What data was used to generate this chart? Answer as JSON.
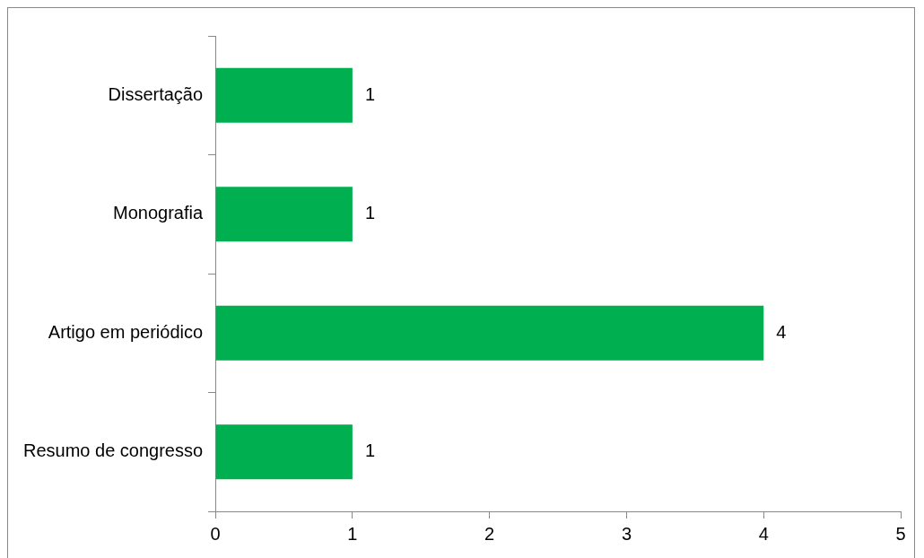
{
  "chart_data": {
    "type": "bar",
    "orientation": "horizontal",
    "categories": [
      "Dissertação",
      "Monografia",
      "Artigo em periódico",
      "Resumo de congresso"
    ],
    "values": [
      1,
      1,
      4,
      1
    ],
    "color": "#00b050",
    "xlim": [
      0,
      5
    ],
    "xticks": [
      0,
      1,
      2,
      3,
      4,
      5
    ],
    "data_labels": true,
    "legend": false,
    "grid": false
  }
}
